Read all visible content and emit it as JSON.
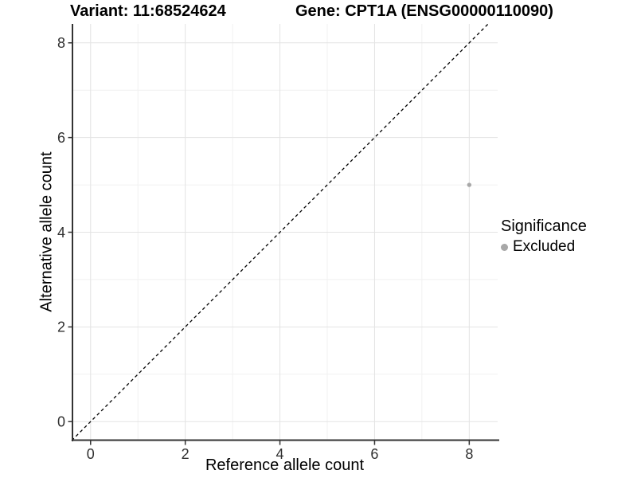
{
  "figure": {
    "title_left": "Variant: 11:68524624",
    "title_right": "Gene: CPT1A (ENSG00000110090)"
  },
  "axes": {
    "x_label": "Reference allele count",
    "y_label": "Alternative allele count"
  },
  "legend": {
    "title": "Significance",
    "items": [
      {
        "label": "Excluded",
        "color": "#a8a8a8"
      }
    ]
  },
  "chart_data": {
    "type": "scatter",
    "title": "Variant: 11:68524624   Gene: CPT1A (ENSG00000110090)",
    "xlabel": "Reference allele count",
    "ylabel": "Alternative allele count",
    "xlim": [
      -0.4,
      8.6
    ],
    "ylim": [
      -0.4,
      8.4
    ],
    "x_ticks": [
      0,
      2,
      4,
      6,
      8
    ],
    "y_ticks": [
      0,
      2,
      4,
      6,
      8
    ],
    "x_minor": [
      1,
      3,
      5,
      7
    ],
    "y_minor": [
      1,
      3,
      5,
      7
    ],
    "grid": "major+minor",
    "legend_position": "right",
    "series": [
      {
        "name": "Excluded",
        "color": "#a8a8a8",
        "points": [
          {
            "x": 8,
            "y": 5
          }
        ],
        "point_radius_px": 2.7
      }
    ],
    "reference_line": {
      "type": "identity y=x",
      "style": "dashed",
      "color": "#000000"
    },
    "colors": {
      "grid_major": "#e3e3e3",
      "grid_minor": "#f1f1f1",
      "axis_line": "#333333",
      "tick_text": "#303030"
    }
  }
}
